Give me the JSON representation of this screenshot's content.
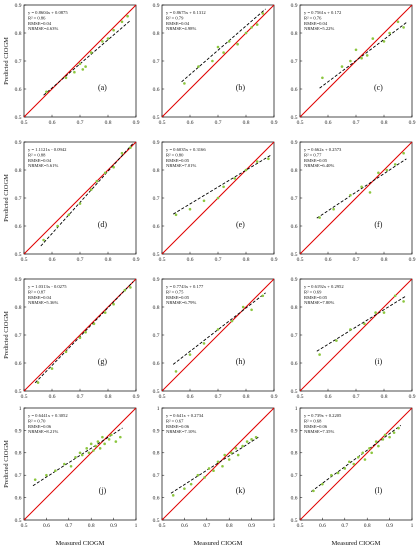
{
  "figure": {
    "ylabel": "Predicted CIOGM",
    "xlabel": "Measured CIOGM",
    "colors": {
      "regression_line": "#000000",
      "one_to_one_line": "#e00000",
      "points": "#8cc63f",
      "frame": "#000000"
    }
  },
  "chart_data": [
    {
      "type": "scatter",
      "panel": "(a)",
      "equation": "y = 0.8604x + 0.0875",
      "r2": "R² = 0.86",
      "rmse": "RMSE=0.04",
      "nrmse": "NRMSE=4.63%",
      "slope": 0.8604,
      "intercept": 0.0875,
      "xlim": [
        0.5,
        0.9
      ],
      "ylim": [
        0.5,
        0.9
      ],
      "xticks": [
        "0.5",
        "0.6",
        "0.7",
        "0.8",
        "0.9"
      ],
      "yticks": [
        "0.5",
        "0.6",
        "0.7",
        "0.8",
        "0.9"
      ],
      "x": [
        0.58,
        0.65,
        0.68,
        0.7,
        0.71,
        0.72,
        0.74,
        0.78,
        0.8,
        0.82,
        0.85,
        0.87
      ],
      "y": [
        0.59,
        0.64,
        0.66,
        0.69,
        0.67,
        0.68,
        0.73,
        0.77,
        0.78,
        0.81,
        0.84,
        0.86
      ]
    },
    {
      "type": "scatter",
      "panel": "(b)",
      "equation": "y = 0.8675x + 0.1312",
      "r2": "R² = 0.79",
      "rmse": "RMSE=0.04",
      "nrmse": "NRMSE=4.98%",
      "slope": 0.8675,
      "intercept": 0.1312,
      "xlim": [
        0.5,
        0.9
      ],
      "ylim": [
        0.5,
        0.9
      ],
      "xticks": [
        "0.5",
        "0.6",
        "0.7",
        "0.8",
        "0.9"
      ],
      "yticks": [
        "0.5",
        "0.6",
        "0.7",
        "0.8",
        "0.9"
      ],
      "x": [
        0.58,
        0.63,
        0.68,
        0.7,
        0.72,
        0.74,
        0.77,
        0.8,
        0.82,
        0.84,
        0.86
      ],
      "y": [
        0.62,
        0.68,
        0.7,
        0.75,
        0.73,
        0.77,
        0.76,
        0.8,
        0.82,
        0.83,
        0.87
      ]
    },
    {
      "type": "scatter",
      "panel": "(c)",
      "equation": "y = 0.7561x + 0.172",
      "r2": "R² = 0.76",
      "rmse": "RMSE=0.04",
      "nrmse": "NRMSE=5.22%",
      "slope": 0.7561,
      "intercept": 0.172,
      "xlim": [
        0.5,
        0.9
      ],
      "ylim": [
        0.5,
        0.9
      ],
      "xticks": [
        "0.5",
        "0.6",
        "0.7",
        "0.8",
        "0.9"
      ],
      "yticks": [
        "0.5",
        "0.6",
        "0.7",
        "0.8",
        "0.9"
      ],
      "x": [
        0.58,
        0.65,
        0.68,
        0.7,
        0.72,
        0.74,
        0.76,
        0.8,
        0.82,
        0.85,
        0.87
      ],
      "y": [
        0.64,
        0.68,
        0.7,
        0.74,
        0.71,
        0.72,
        0.78,
        0.77,
        0.8,
        0.84,
        0.82
      ]
    },
    {
      "type": "scatter",
      "panel": "(d)",
      "equation": "y = 1.1121x - 0.0942",
      "r2": "R² = 0.88",
      "rmse": "RMSE=0.04",
      "nrmse": "NRMSE=5.61%",
      "slope": 1.1121,
      "intercept": -0.0942,
      "xlim": [
        0.5,
        0.9
      ],
      "ylim": [
        0.5,
        0.9
      ],
      "xticks": [
        "0.5",
        "0.6",
        "0.7",
        "0.8",
        "0.9"
      ],
      "yticks": [
        "0.5",
        "0.6",
        "0.7",
        "0.8",
        "0.9"
      ],
      "x": [
        0.57,
        0.62,
        0.66,
        0.7,
        0.74,
        0.76,
        0.79,
        0.82,
        0.85,
        0.88
      ],
      "y": [
        0.55,
        0.6,
        0.64,
        0.68,
        0.73,
        0.76,
        0.79,
        0.81,
        0.86,
        0.88
      ]
    },
    {
      "type": "scatter",
      "panel": "(e)",
      "equation": "y = 0.6035x + 0.3166",
      "r2": "R² = 0.80",
      "rmse": "RMSE=0.05",
      "nrmse": "NRMSE=7.01%",
      "slope": 0.6035,
      "intercept": 0.3166,
      "xlim": [
        0.5,
        0.9
      ],
      "ylim": [
        0.5,
        0.9
      ],
      "xticks": [
        "0.5",
        "0.6",
        "0.7",
        "0.8",
        "0.9"
      ],
      "yticks": [
        "0.5",
        "0.6",
        "0.7",
        "0.8",
        "0.9"
      ],
      "x": [
        0.55,
        0.6,
        0.65,
        0.7,
        0.72,
        0.76,
        0.8,
        0.84,
        0.88
      ],
      "y": [
        0.64,
        0.66,
        0.69,
        0.7,
        0.74,
        0.77,
        0.8,
        0.83,
        0.84
      ]
    },
    {
      "type": "scatter",
      "panel": "(f)",
      "equation": "y = 0.662x + 0.2573",
      "r2": "R² = 0.77",
      "rmse": "RMSE=0.05",
      "nrmse": "NRMSE=6.40%",
      "slope": 0.662,
      "intercept": 0.2573,
      "xlim": [
        0.5,
        0.9
      ],
      "ylim": [
        0.5,
        0.9
      ],
      "xticks": [
        "0.5",
        "0.6",
        "0.7",
        "0.8",
        "0.9"
      ],
      "yticks": [
        "0.5",
        "0.6",
        "0.7",
        "0.8",
        "0.9"
      ],
      "x": [
        0.57,
        0.62,
        0.68,
        0.72,
        0.75,
        0.78,
        0.81,
        0.84,
        0.87
      ],
      "y": [
        0.63,
        0.66,
        0.71,
        0.74,
        0.72,
        0.79,
        0.8,
        0.82,
        0.86
      ]
    },
    {
      "type": "scatter",
      "panel": "(g)",
      "equation": "y = 1.0313x - 0.0275",
      "r2": "R² = 0.87",
      "rmse": "RMSE=0.04",
      "nrmse": "NRMSE=5.36%",
      "slope": 1.0313,
      "intercept": -0.0275,
      "xlim": [
        0.5,
        0.9
      ],
      "ylim": [
        0.5,
        0.9
      ],
      "xticks": [
        "0.5",
        "0.6",
        "0.7",
        "0.8",
        "0.9"
      ],
      "yticks": [
        "0.5",
        "0.6",
        "0.7",
        "0.8",
        "0.9"
      ],
      "x": [
        0.55,
        0.6,
        0.65,
        0.7,
        0.72,
        0.75,
        0.79,
        0.82,
        0.86,
        0.88
      ],
      "y": [
        0.53,
        0.58,
        0.64,
        0.69,
        0.71,
        0.74,
        0.78,
        0.81,
        0.86,
        0.87
      ]
    },
    {
      "type": "scatter",
      "panel": "(h)",
      "equation": "y = 0.7743x + 0.177",
      "r2": "R² = 0.75",
      "rmse": "RMSE=0.05",
      "nrmse": "NRMSE=6.79%",
      "slope": 0.7743,
      "intercept": 0.177,
      "xlim": [
        0.5,
        0.9
      ],
      "ylim": [
        0.5,
        0.9
      ],
      "xticks": [
        "0.5",
        "0.6",
        "0.7",
        "0.8",
        "0.9"
      ],
      "yticks": [
        "0.5",
        "0.6",
        "0.7",
        "0.8",
        "0.9"
      ],
      "x": [
        0.55,
        0.6,
        0.65,
        0.7,
        0.75,
        0.79,
        0.82,
        0.86
      ],
      "y": [
        0.57,
        0.63,
        0.67,
        0.72,
        0.75,
        0.8,
        0.79,
        0.84
      ]
    },
    {
      "type": "scatter",
      "panel": "(i)",
      "equation": "y = 0.6192x + 0.2952",
      "r2": "R² = 0.69",
      "rmse": "RMSE=0.05",
      "nrmse": "NRMSE=7.80%",
      "slope": 0.6192,
      "intercept": 0.2952,
      "xlim": [
        0.5,
        0.9
      ],
      "ylim": [
        0.5,
        0.9
      ],
      "xticks": [
        "0.5",
        "0.6",
        "0.7",
        "0.8",
        "0.9"
      ],
      "yticks": [
        "0.5",
        "0.6",
        "0.7",
        "0.8",
        "0.9"
      ],
      "x": [
        0.57,
        0.63,
        0.68,
        0.73,
        0.77,
        0.8,
        0.84,
        0.87
      ],
      "y": [
        0.63,
        0.68,
        0.72,
        0.74,
        0.78,
        0.78,
        0.84,
        0.82
      ]
    },
    {
      "type": "scatter",
      "panel": "(j)",
      "equation": "y = 0.6441x + 0.3052",
      "r2": "R² = 0.70",
      "rmse": "RMSE=0.06",
      "nrmse": "NRMSE=8.21%",
      "slope": 0.6441,
      "intercept": 0.3052,
      "xlim": [
        0.5,
        1
      ],
      "ylim": [
        0.5,
        1
      ],
      "xticks": [
        "0.5",
        "0.6",
        "0.7",
        "0.8",
        "0.9",
        "1"
      ],
      "yticks": [
        "0.5",
        "0.6",
        "0.7",
        "0.8",
        "0.9",
        "1"
      ],
      "x": [
        0.55,
        0.6,
        0.64,
        0.68,
        0.71,
        0.73,
        0.75,
        0.76,
        0.78,
        0.79,
        0.8,
        0.81,
        0.82,
        0.83,
        0.84,
        0.85,
        0.86,
        0.88,
        0.89,
        0.91,
        0.93
      ],
      "y": [
        0.68,
        0.7,
        0.72,
        0.75,
        0.74,
        0.78,
        0.8,
        0.79,
        0.82,
        0.8,
        0.84,
        0.81,
        0.83,
        0.85,
        0.82,
        0.87,
        0.84,
        0.86,
        0.88,
        0.85,
        0.87
      ]
    },
    {
      "type": "scatter",
      "panel": "(k)",
      "equation": "y = 0.641x + 0.2734",
      "r2": "R² = 0.67",
      "rmse": "RMSE=0.06",
      "nrmse": "NRMSE=7.10%",
      "slope": 0.641,
      "intercept": 0.2734,
      "xlim": [
        0.5,
        1
      ],
      "ylim": [
        0.5,
        1
      ],
      "xticks": [
        "0.5",
        "0.6",
        "0.7",
        "0.8",
        "0.9",
        "1"
      ],
      "yticks": [
        "0.5",
        "0.6",
        "0.7",
        "0.8",
        "0.9",
        "1"
      ],
      "x": [
        0.55,
        0.6,
        0.63,
        0.66,
        0.69,
        0.71,
        0.73,
        0.75,
        0.77,
        0.78,
        0.8,
        0.81,
        0.83,
        0.84,
        0.86,
        0.88,
        0.9,
        0.92
      ],
      "y": [
        0.61,
        0.64,
        0.66,
        0.7,
        0.69,
        0.73,
        0.72,
        0.76,
        0.74,
        0.79,
        0.77,
        0.8,
        0.82,
        0.79,
        0.83,
        0.85,
        0.86,
        0.87
      ]
    },
    {
      "type": "scatter",
      "panel": "(l)",
      "equation": "y = 0.739x + 0.2205",
      "r2": "R² = 0.68",
      "rmse": "RMSE=0.06",
      "nrmse": "NRMSE=7.35%",
      "slope": 0.739,
      "intercept": 0.2205,
      "xlim": [
        0.5,
        1
      ],
      "ylim": [
        0.5,
        1
      ],
      "xticks": [
        "0.5",
        "0.6",
        "0.7",
        "0.8",
        "0.9",
        "1"
      ],
      "yticks": [
        "0.5",
        "0.6",
        "0.7",
        "0.8",
        "0.9",
        "1"
      ],
      "x": [
        0.56,
        0.6,
        0.64,
        0.67,
        0.7,
        0.72,
        0.74,
        0.76,
        0.78,
        0.79,
        0.81,
        0.82,
        0.84,
        0.85,
        0.87,
        0.88,
        0.9,
        0.92,
        0.94
      ],
      "y": [
        0.63,
        0.66,
        0.7,
        0.71,
        0.73,
        0.76,
        0.75,
        0.78,
        0.8,
        0.77,
        0.82,
        0.8,
        0.85,
        0.83,
        0.86,
        0.88,
        0.87,
        0.89,
        0.91
      ]
    }
  ]
}
